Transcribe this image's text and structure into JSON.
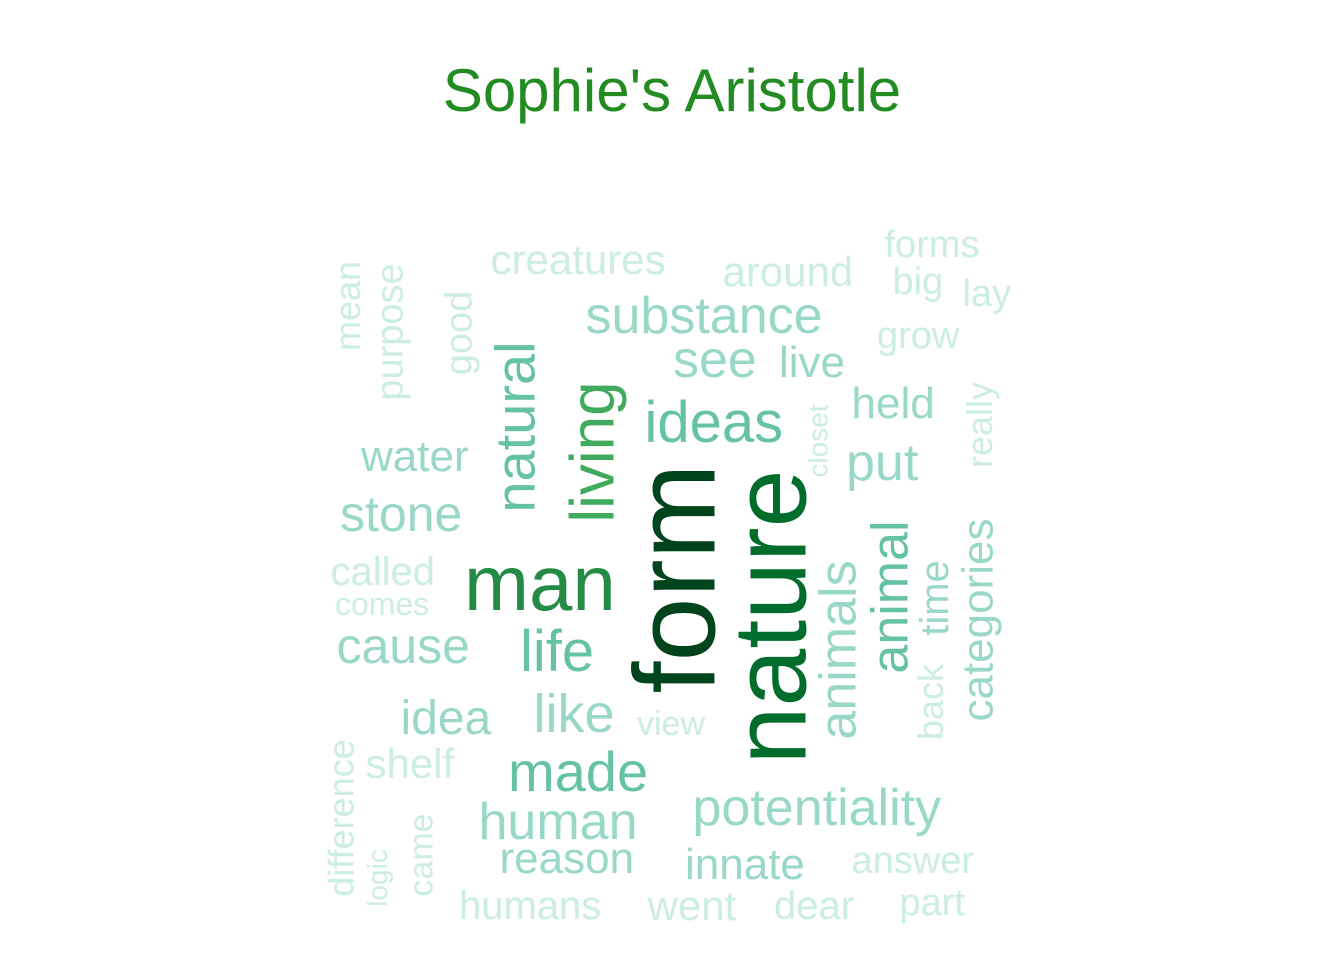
{
  "title": "Sophie's Aristotle",
  "colors": {
    "title": "#228B22",
    "palette": [
      "#00441b",
      "#006d2c",
      "#238b45",
      "#41ab5d",
      "#66c2a4",
      "#99d8c9",
      "#ccece6"
    ]
  },
  "words": [
    {
      "text": "form",
      "weight": 10
    },
    {
      "text": "nature",
      "weight": 9
    },
    {
      "text": "man",
      "weight": 7
    },
    {
      "text": "living",
      "weight": 6
    },
    {
      "text": "natural",
      "weight": 5
    },
    {
      "text": "ideas",
      "weight": 5
    },
    {
      "text": "life",
      "weight": 5
    },
    {
      "text": "made",
      "weight": 5
    },
    {
      "text": "animal",
      "weight": 5
    },
    {
      "text": "like",
      "weight": 4
    },
    {
      "text": "animals",
      "weight": 4
    },
    {
      "text": "substance",
      "weight": 4
    },
    {
      "text": "potentiality",
      "weight": 4
    },
    {
      "text": "human",
      "weight": 4
    },
    {
      "text": "cause",
      "weight": 4
    },
    {
      "text": "stone",
      "weight": 4
    },
    {
      "text": "idea",
      "weight": 4
    },
    {
      "text": "see",
      "weight": 4
    },
    {
      "text": "put",
      "weight": 4
    },
    {
      "text": "categories",
      "weight": 3
    },
    {
      "text": "time",
      "weight": 3
    },
    {
      "text": "held",
      "weight": 3
    },
    {
      "text": "reason",
      "weight": 3
    },
    {
      "text": "innate",
      "weight": 3
    },
    {
      "text": "water",
      "weight": 3
    },
    {
      "text": "live",
      "weight": 3
    },
    {
      "text": "really",
      "weight": 2
    },
    {
      "text": "back",
      "weight": 2
    },
    {
      "text": "grow",
      "weight": 2
    },
    {
      "text": "purpose",
      "weight": 2
    },
    {
      "text": "good",
      "weight": 2
    },
    {
      "text": "around",
      "weight": 2
    },
    {
      "text": "creatures",
      "weight": 2
    },
    {
      "text": "called",
      "weight": 2
    },
    {
      "text": "shelf",
      "weight": 2
    },
    {
      "text": "answer",
      "weight": 2
    },
    {
      "text": "difference",
      "weight": 2
    },
    {
      "text": "came",
      "weight": 2
    },
    {
      "text": "humans",
      "weight": 2
    },
    {
      "text": "went",
      "weight": 2
    },
    {
      "text": "dear",
      "weight": 2
    },
    {
      "text": "part",
      "weight": 2
    },
    {
      "text": "forms",
      "weight": 2
    },
    {
      "text": "big",
      "weight": 2
    },
    {
      "text": "lay",
      "weight": 2
    },
    {
      "text": "mean",
      "weight": 2
    },
    {
      "text": "comes",
      "weight": 1
    },
    {
      "text": "view",
      "weight": 1
    },
    {
      "text": "logic",
      "weight": 1
    },
    {
      "text": "closet",
      "weight": 1
    }
  ]
}
